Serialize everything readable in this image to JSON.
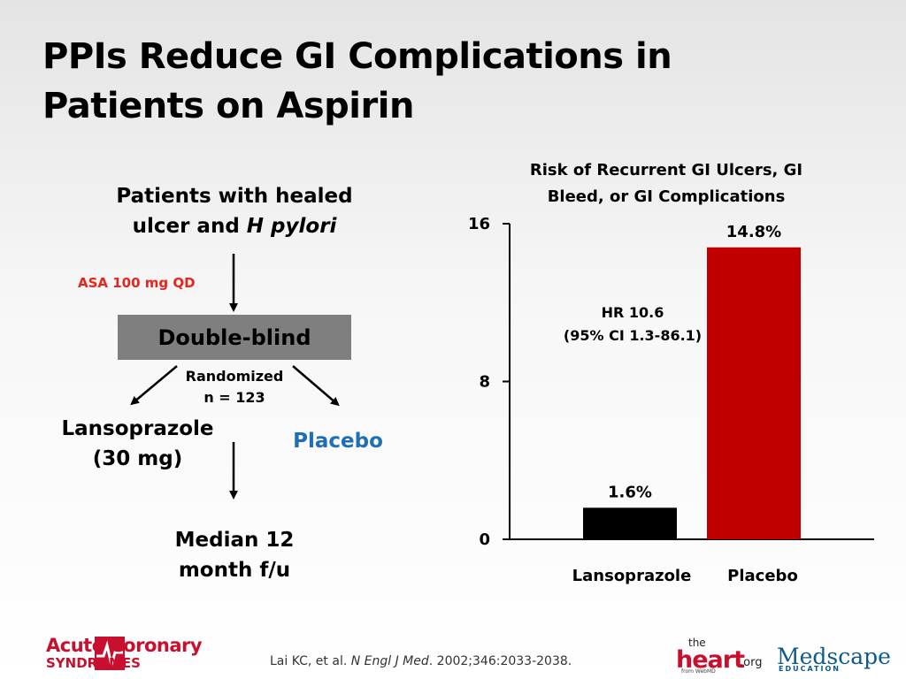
{
  "slide": {
    "title": "PPIs Reduce GI Complications in Patients on Aspirin"
  },
  "flow": {
    "patients_line1": "Patients with healed",
    "patients_line2_prefix": "ulcer and ",
    "patients_line2_italic": "H pylori",
    "asa_label": "ASA 100 mg QD",
    "double_blind": "Double-blind",
    "randomized": "Randomized",
    "n": "n = 123",
    "lanso_line1": "Lansoprazole",
    "lanso_line2": "(30 mg)",
    "placebo": "Placebo",
    "median_line1": "Median 12",
    "median_line2": "month f/u"
  },
  "chart_data": {
    "type": "bar",
    "title": "Risk of Recurrent GI Ulcers, GI Bleed, or GI Complications",
    "categories": [
      "Lansoprazole",
      "Placebo"
    ],
    "values": [
      1.6,
      14.8
    ],
    "data_labels": [
      "1.6%",
      "14.8%"
    ],
    "bar_colors": [
      "#000000",
      "#c00000"
    ],
    "ylim": [
      0,
      16
    ],
    "yticks": [
      0,
      8,
      16
    ],
    "grid": false,
    "annotation_line1": "HR 10.6",
    "annotation_line2": "(95% CI 1.3-86.1)"
  },
  "footer": {
    "citation_author": "Lai KC, et al. ",
    "citation_journal": "N Engl J Med",
    "citation_rest": ". 2002;346:2033-2038.",
    "logo_acs_line1": "Acute Coronary",
    "logo_acs_line2": "SYNDROMES",
    "logo_heart_the": "the",
    "logo_heart_main": "heart",
    "logo_heart_org": ".org",
    "logo_heart_from": "from WebMD",
    "logo_medscape_main": "Medscape",
    "logo_medscape_sub": "EDUCATION"
  },
  "colors": {
    "asa_red": "#e8251b",
    "placebo_blue": "#1f6fb2",
    "box_gray": "#7f7f7f",
    "brand_red": "#c8102e",
    "medscape_blue": "#0d5a8c"
  }
}
